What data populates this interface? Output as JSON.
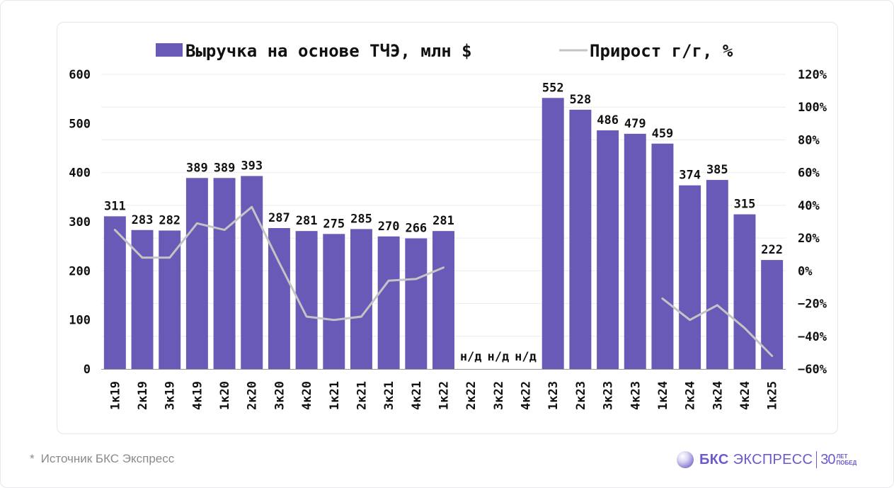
{
  "chart_data": {
    "type": "bar",
    "legend": {
      "position": "top",
      "bar_label": "Выручка на основе ТЧЭ, млн $",
      "line_label": "Прирост г/г, %"
    },
    "categories": [
      "1к19",
      "2к19",
      "3к19",
      "4к19",
      "1к20",
      "2к20",
      "3к20",
      "4к20",
      "1к21",
      "2к21",
      "3к21",
      "4к21",
      "1к22",
      "2к22",
      "3к22",
      "4к22",
      "1к23",
      "2к23",
      "3к23",
      "4к23",
      "1к24",
      "2к24",
      "3к24",
      "4к24",
      "1к25"
    ],
    "bar_values": [
      311,
      283,
      282,
      389,
      389,
      393,
      287,
      281,
      275,
      285,
      270,
      266,
      281,
      null,
      null,
      null,
      552,
      528,
      486,
      479,
      459,
      374,
      385,
      315,
      222
    ],
    "bar_labels": [
      "311",
      "283",
      "282",
      "389",
      "389",
      "393",
      "287",
      "281",
      "275",
      "285",
      "270",
      "266",
      "281",
      "н/д",
      "н/д",
      "н/д",
      "552",
      "528",
      "486",
      "479",
      "459",
      "374",
      "385",
      "315",
      "222"
    ],
    "growth_values": [
      25,
      8,
      8,
      29,
      25,
      39,
      5,
      -28,
      -30,
      -28,
      -6,
      -5,
      2,
      null,
      null,
      null,
      null,
      null,
      null,
      null,
      -17,
      -30,
      -21,
      -35,
      -52
    ],
    "y_left": {
      "min": 0,
      "max": 600,
      "ticks": [
        0,
        100,
        200,
        300,
        400,
        500,
        600
      ],
      "tick_labels": [
        "0",
        "100",
        "200",
        "300",
        "400",
        "500",
        "600"
      ]
    },
    "y_right": {
      "min": -60,
      "max": 120,
      "ticks": [
        -60,
        -40,
        -20,
        0,
        20,
        40,
        60,
        80,
        100,
        120
      ],
      "tick_labels": [
        "−60%",
        "−40%",
        "−20%",
        "0%",
        "20%",
        "40%",
        "60%",
        "80%",
        "100%",
        "120%"
      ]
    },
    "grid": true,
    "colors": {
      "bar": "#6a5ab8",
      "line": "#c4c4c4",
      "text": "#111111",
      "grid": "#ececec"
    }
  },
  "footnote": {
    "star": "*",
    "text": "Источник БКС Экспресс"
  },
  "logo": {
    "bks": "БКС",
    "express": "ЭКСПРЕСС",
    "num": "30",
    "small_top": "ЛЕТ",
    "small_bottom": "ПОБЕД"
  }
}
